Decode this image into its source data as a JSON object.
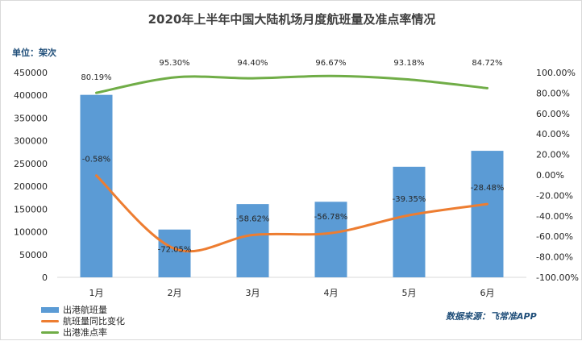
{
  "title": "2020年上半年中国大陆机场月度航班量及准点率情况",
  "unit_label": "单位：架次",
  "source_label": "数据来源：飞常准APP",
  "colors": {
    "bar": "#5b9bd5",
    "yoy_line": "#ed7d31",
    "ontime_line": "#70ad47",
    "grid": "#d9d9d9"
  },
  "legend": {
    "bar_label": "出港航班量",
    "yoy_label": "航班量同比变化",
    "ontime_label": "出港准点率"
  },
  "chart_data": {
    "type": "bar",
    "title": "2020年上半年中国大陆机场月度航班量及准点率情况",
    "categories": [
      "1月",
      "2月",
      "3月",
      "4月",
      "5月",
      "6月"
    ],
    "series": [
      {
        "name": "出港航班量",
        "type": "bar",
        "axis": "left",
        "values": [
          401000,
          105000,
          161000,
          166000,
          243000,
          278000
        ]
      },
      {
        "name": "航班量同比变化",
        "type": "line",
        "axis": "right",
        "values": [
          -0.58,
          -72.05,
          -58.62,
          -56.78,
          -39.35,
          -28.48
        ],
        "labels": [
          "-0.58%",
          "-72.05%",
          "-58.62%",
          "-56.78%",
          "-39.35%",
          "-28.48%"
        ]
      },
      {
        "name": "出港准点率",
        "type": "line",
        "axis": "right",
        "values": [
          80.19,
          95.3,
          94.4,
          96.67,
          93.18,
          84.72
        ],
        "labels": [
          "80.19%",
          "95.30%",
          "94.40%",
          "96.67%",
          "93.18%",
          "84.72%"
        ]
      }
    ],
    "left_axis": {
      "ylim": [
        0,
        450000
      ],
      "ticks": [
        0,
        50000,
        100000,
        150000,
        200000,
        250000,
        300000,
        350000,
        400000,
        450000
      ],
      "tick_labels": [
        "0",
        "50000",
        "100000",
        "150000",
        "200000",
        "250000",
        "300000",
        "350000",
        "400000",
        "450000"
      ]
    },
    "right_axis": {
      "ylim": [
        -100,
        100
      ],
      "ticks": [
        100,
        80,
        60,
        40,
        20,
        0,
        -20,
        -40,
        -60,
        -80,
        -100
      ],
      "tick_labels": [
        "100.00%",
        "80.00%",
        "60.00%",
        "40.00%",
        "20.00%",
        "0.00%",
        "-20.00%",
        "-40.00%",
        "-60.00%",
        "-80.00%",
        "-100.00%"
      ]
    },
    "grid": false,
    "legend_position": "bottom-left"
  }
}
